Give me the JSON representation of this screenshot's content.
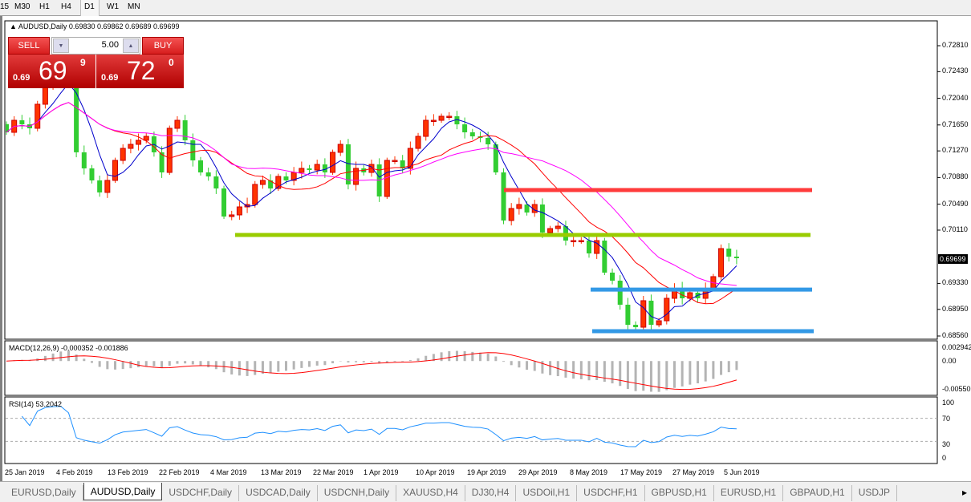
{
  "timeframes": {
    "items": [
      "15",
      "M30",
      "H1",
      "H4",
      "D1",
      "W1",
      "MN"
    ],
    "selected": "D1"
  },
  "chart": {
    "header": "AUDUSD,Daily  0.69830 0.69862 0.69689 0.69699",
    "symbol": "AUDUSD",
    "period": "Daily",
    "current_price": "0.69699",
    "price_axis": [
      "0.72810",
      "0.72430",
      "0.72040",
      "0.71650",
      "0.71270",
      "0.70880",
      "0.70490",
      "0.70110",
      "0.69330",
      "0.68950",
      "0.68560"
    ],
    "price_range": [
      0.6856,
      0.7281
    ],
    "bull_color": "#ff3300",
    "bear_color": "#32cd32",
    "closes": [
      0.71542,
      0.71718,
      0.71659,
      0.71601,
      0.71953,
      0.72246,
      0.72364,
      0.72423,
      0.72305,
      0.71249,
      0.71014,
      0.70838,
      0.70662,
      0.70838,
      0.71131,
      0.71307,
      0.71366,
      0.71425,
      0.71483,
      0.71249,
      0.70955,
      0.71601,
      0.71718,
      0.71425,
      0.71131,
      0.70955,
      0.70896,
      0.7072,
      0.70309,
      0.70333,
      0.7045,
      0.70485,
      0.70779,
      0.70838,
      0.7072,
      0.70896,
      0.70838,
      0.70955,
      0.71014,
      0.7099,
      0.71072,
      0.70955,
      0.71249,
      0.71366,
      0.70779,
      0.71014,
      0.70955,
      0.71072,
      0.70603,
      0.71131,
      0.71131,
      0.71014,
      0.71307,
      0.71483,
      0.71718,
      0.71718,
      0.71777,
      0.71777,
      0.71659,
      0.71542,
      0.71483,
      0.7146,
      0.71366,
      0.70955,
      0.70251,
      0.70427,
      0.70485,
      0.70368,
      0.70485,
      0.70075,
      0.70133,
      0.70168,
      0.69957,
      0.69957,
      0.69957,
      0.69769,
      0.69957,
      0.69488,
      0.6937,
      0.69018,
      0.68724,
      0.68689,
      0.69077,
      0.68724,
      0.68783,
      0.69112,
      0.69253,
      0.69112,
      0.69194,
      0.69112,
      0.69253,
      0.69429,
      0.6984,
      0.69722,
      0.69699
    ],
    "moving_averages": [
      {
        "period": 5,
        "color": "#0000cc"
      },
      {
        "period": 13,
        "color": "#ff0000"
      },
      {
        "period": 21,
        "color": "#ff00ff"
      }
    ],
    "levels": [
      {
        "price": 0.70697,
        "color": "#ff3b3b"
      },
      {
        "price": 0.7004,
        "color": "#99cc00"
      },
      {
        "price": 0.6924,
        "color": "#3399e6"
      },
      {
        "price": 0.6863,
        "color": "#3399e6"
      }
    ],
    "dates": [
      "25 Jan 2019",
      "4 Feb 2019",
      "13 Feb 2019",
      "22 Feb 2019",
      "4 Mar 2019",
      "13 Mar 2019",
      "22 Mar 2019",
      "1 Apr 2019",
      "10 Apr 2019",
      "19 Apr 2019",
      "29 Apr 2019",
      "8 May 2019",
      "17 May 2019",
      "27 May 2019",
      "5 Jun 2019"
    ]
  },
  "trade": {
    "sell": "SELL",
    "buy": "BUY",
    "volume": "5.00",
    "sell_small": "0.69",
    "sell_big": "69",
    "sell_pip": "9",
    "buy_small": "0.69",
    "buy_big": "72",
    "buy_pip": "0"
  },
  "macd": {
    "label": "MACD(12,26,9) -0.000352 -0.001886",
    "axis": [
      "0.002942",
      "0.00",
      "-0.00550"
    ],
    "range": [
      -0.0055,
      0.002942
    ]
  },
  "rsi": {
    "label": "RSI(14) 53.2042",
    "axis": [
      "100",
      "70",
      "30",
      "0"
    ]
  },
  "tabs": [
    "EURUSD,Daily",
    "AUDUSD,Daily",
    "USDCHF,Daily",
    "USDCAD,Daily",
    "USDCNH,Daily",
    "XAUUSD,H4",
    "DJ30,H4",
    "USDOil,H1",
    "USDCHF,H1",
    "GBPUSD,H1",
    "EURUSD,H1",
    "GBPAUD,H1",
    "USDJP"
  ],
  "active_tab": "AUDUSD,Daily"
}
